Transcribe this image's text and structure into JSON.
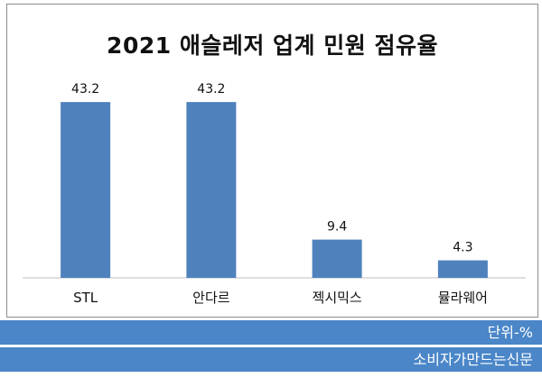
{
  "chart_data": {
    "type": "bar",
    "title": "2021 애슬레저 업계 민원 점유율",
    "categories": [
      "STL",
      "안다르",
      "젝시믹스",
      "뮬라웨어"
    ],
    "values": [
      43.2,
      43.2,
      9.4,
      4.3
    ],
    "value_labels": [
      "43.2",
      "43.2",
      "9.4",
      "4.3"
    ],
    "xlabel": "",
    "ylabel": "",
    "ylim": [
      0,
      45
    ],
    "grid": false,
    "legend": "none",
    "bar_color": "#4f81bd"
  },
  "footer": {
    "unit": "단위-%",
    "source": "소비자가만드는신문"
  },
  "colors": {
    "footer_bg": "#4a86c8"
  }
}
